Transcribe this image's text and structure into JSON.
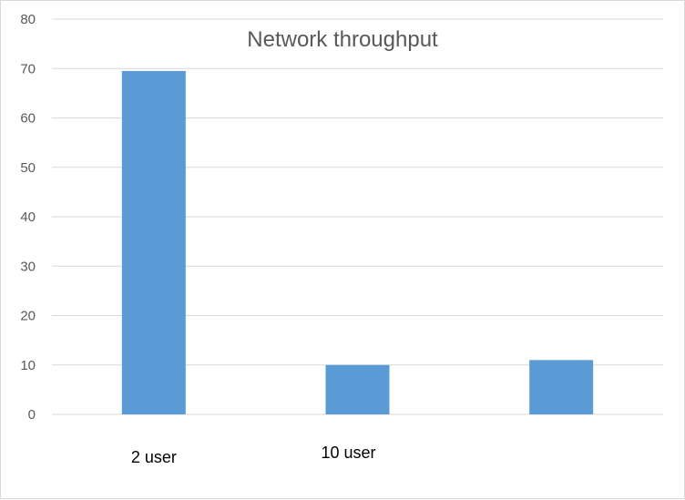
{
  "chart_data": {
    "type": "bar",
    "title": "Network throughput",
    "categories": [
      "2 user",
      "10 user",
      ""
    ],
    "series": [
      {
        "values": [
          69.5,
          10,
          11
        ],
        "color": "#5b9bd5"
      }
    ],
    "ylim": [
      0,
      80
    ],
    "yticks": [
      0,
      10,
      20,
      30,
      40,
      50,
      60,
      70,
      80
    ],
    "grid": true,
    "gridColor": "#d9d9d9"
  }
}
